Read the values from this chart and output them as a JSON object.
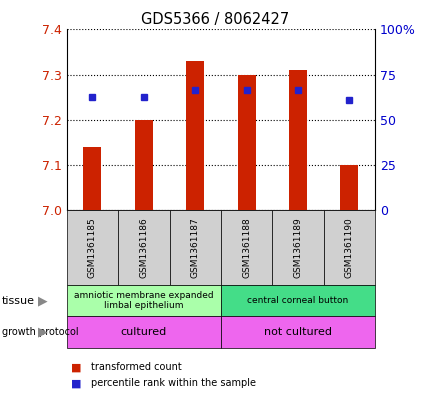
{
  "title": "GDS5366 / 8062427",
  "samples": [
    "GSM1361185",
    "GSM1361186",
    "GSM1361187",
    "GSM1361188",
    "GSM1361189",
    "GSM1361190"
  ],
  "red_values": [
    7.14,
    7.2,
    7.33,
    7.3,
    7.31,
    7.1
  ],
  "blue_values": [
    7.25,
    7.25,
    7.265,
    7.265,
    7.265,
    7.245
  ],
  "y_min": 7.0,
  "y_max": 7.4,
  "y_ticks": [
    7.0,
    7.1,
    7.2,
    7.3,
    7.4
  ],
  "y2_ticks": [
    0,
    25,
    50,
    75,
    100
  ],
  "bar_color": "#cc2200",
  "dot_color": "#2222cc",
  "bar_width": 0.35,
  "tissue_groups": [
    {
      "label": "amniotic membrane expanded\nlimbal epithelium",
      "samples": [
        0,
        1,
        2
      ],
      "color": "#aaffaa"
    },
    {
      "label": "central corneal button",
      "samples": [
        3,
        4,
        5
      ],
      "color": "#44dd88"
    }
  ],
  "protocol_groups": [
    {
      "label": "cultured",
      "samples": [
        0,
        1,
        2
      ],
      "color": "#ee66ee"
    },
    {
      "label": "not cultured",
      "samples": [
        3,
        4,
        5
      ],
      "color": "#ee66ee"
    }
  ],
  "legend_red": "transformed count",
  "legend_blue": "percentile rank within the sample",
  "tissue_label": "tissue",
  "protocol_label": "growth protocol"
}
